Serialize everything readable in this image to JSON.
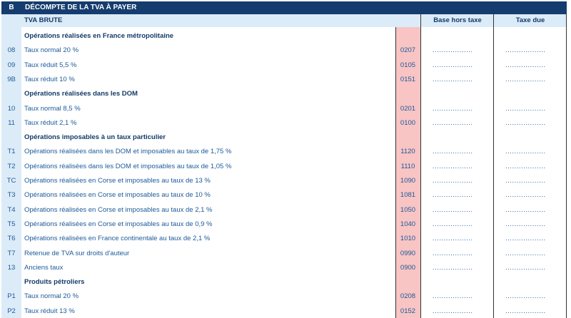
{
  "header": {
    "code": "B",
    "title": "DÉCOMPTE DE LA TVA À PAYER"
  },
  "subheader": {
    "label": "TVA BRUTE",
    "col_base": "Base hors taxe",
    "col_tax": "Taxe due"
  },
  "dots": "..................",
  "rows": [
    {
      "type": "section",
      "label": "Opérations réalisées en France métropolitaine"
    },
    {
      "type": "line",
      "num": "08",
      "label": "Taux normal 20 %",
      "box": "0207"
    },
    {
      "type": "line",
      "num": "09",
      "label": "Taux réduit 5,5 %",
      "box": "0105"
    },
    {
      "type": "line",
      "num": "9B",
      "label": "Taux réduit 10 %",
      "box": "0151"
    },
    {
      "type": "section",
      "label": "Opérations réalisées dans les DOM"
    },
    {
      "type": "line",
      "num": "10",
      "label": "Taux normal 8,5 %",
      "box": "0201"
    },
    {
      "type": "line",
      "num": "11",
      "label": "Taux réduit 2,1 %",
      "box": "0100"
    },
    {
      "type": "section",
      "label": "Opérations imposables à un taux particulier"
    },
    {
      "type": "line",
      "num": "T1",
      "label": "Opérations réalisées dans les DOM et imposables au taux de 1,75 %",
      "box": "1120"
    },
    {
      "type": "line",
      "num": "T2",
      "label": "Opérations réalisées dans les DOM et imposables au taux de 1,05 %",
      "box": "1110"
    },
    {
      "type": "line",
      "num": "TC",
      "label": "Opérations réalisées en Corse et imposables au taux de 13 %",
      "box": "1090"
    },
    {
      "type": "line",
      "num": "T3",
      "label": "Opérations réalisées en Corse et imposables au taux de 10 %",
      "box": "1081"
    },
    {
      "type": "line",
      "num": "T4",
      "label": "Opérations réalisées en Corse et imposables au taux de 2,1 %",
      "box": "1050"
    },
    {
      "type": "line",
      "num": "T5",
      "label": "Opérations réalisées en Corse et imposables au taux de 0,9 %",
      "box": "1040"
    },
    {
      "type": "line",
      "num": "T6",
      "label": "Opérations réalisées en France continentale au taux de 2,1 %",
      "box": "1010"
    },
    {
      "type": "line",
      "num": "T7",
      "label": "Retenue de TVA sur droits d'auteur",
      "box": "0990"
    },
    {
      "type": "line",
      "num": "13",
      "label": "Anciens taux",
      "box": "0900"
    },
    {
      "type": "section",
      "label": "Produits pétroliers"
    },
    {
      "type": "line",
      "num": "P1",
      "label": "Taux normal 20 %",
      "box": "0208"
    },
    {
      "type": "line",
      "num": "P2",
      "label": "Taux réduit 13 %",
      "box": "0152"
    }
  ]
}
